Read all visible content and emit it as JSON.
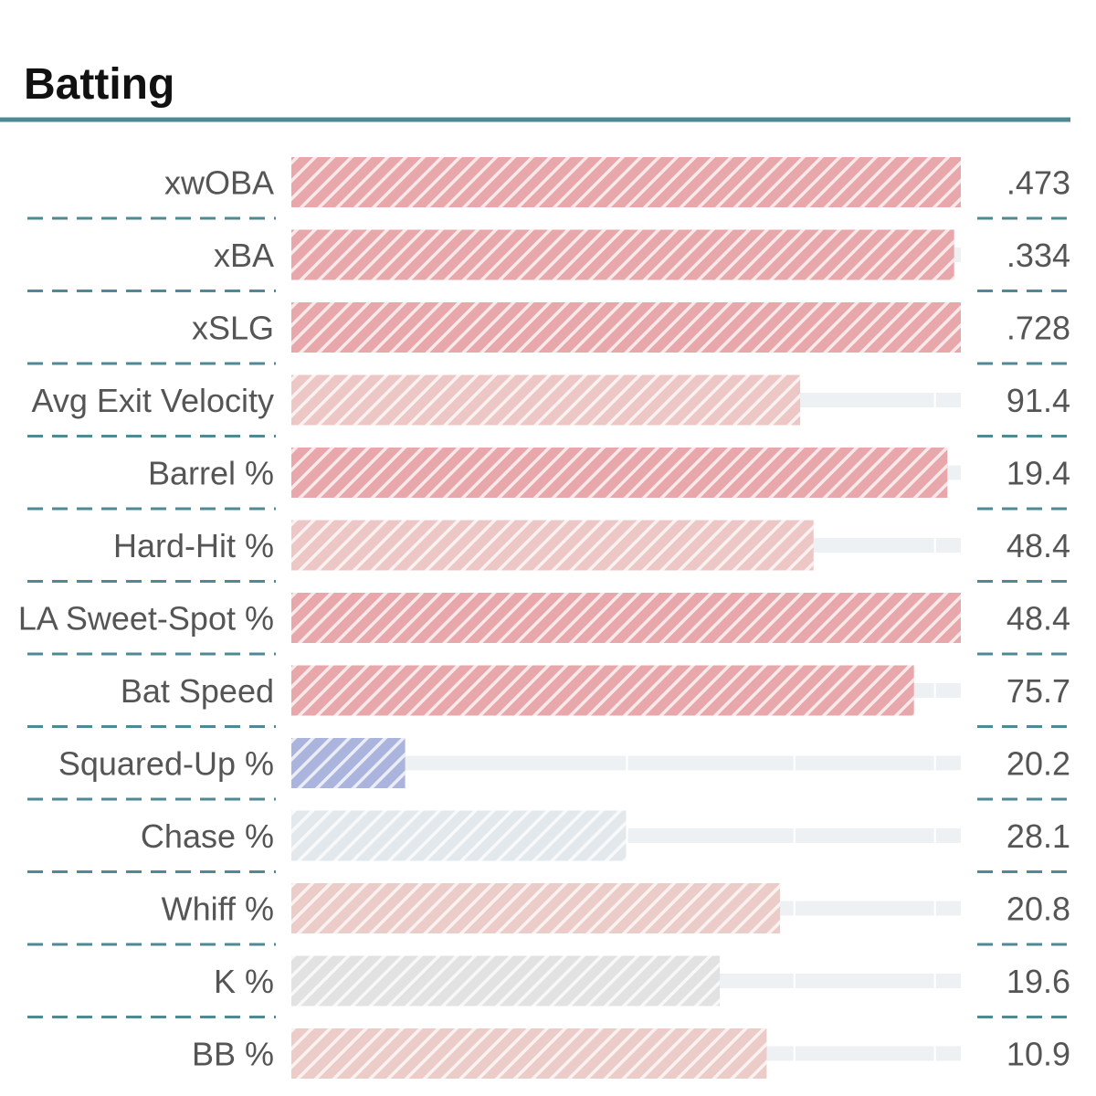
{
  "chart_data": {
    "type": "bar",
    "title": "Batting",
    "orientation": "horizontal",
    "xlim": [
      0,
      100
    ],
    "grid": false,
    "legend": "none",
    "colors": {
      "title_rule": "#4f8a94",
      "row_divider": "#4f8a94",
      "track": "#eef1f3",
      "label_text": "#555555",
      "value_text": "#555555",
      "title_text": "#111111"
    },
    "categories": [
      "xwOBA",
      "xBA",
      "xSLG",
      "Avg Exit Velocity",
      "Barrel %",
      "Hard-Hit %",
      "LA Sweet-Spot %",
      "Bat Speed",
      "Squared-Up %",
      "Chase %",
      "Whiff %",
      "K %",
      "BB %"
    ],
    "values": [
      100,
      99,
      100,
      76,
      98,
      78,
      100,
      93,
      17,
      50,
      73,
      64,
      71
    ],
    "value_labels": [
      ".473",
      ".334",
      ".728",
      "91.4",
      "19.4",
      "48.4",
      "48.4",
      "75.7",
      "20.2",
      "28.1",
      "20.8",
      "19.6",
      "10.9"
    ],
    "bar_colors": [
      "#e8a7aa",
      "#e8a7aa",
      "#e8a7aa",
      "#edc7c6",
      "#e8a7aa",
      "#edc7c6",
      "#e8a7aa",
      "#e8a7aa",
      "#aab4dd",
      "#e3e8ec",
      "#ecccc8",
      "#e2e2e2",
      "#ecccc8"
    ]
  }
}
